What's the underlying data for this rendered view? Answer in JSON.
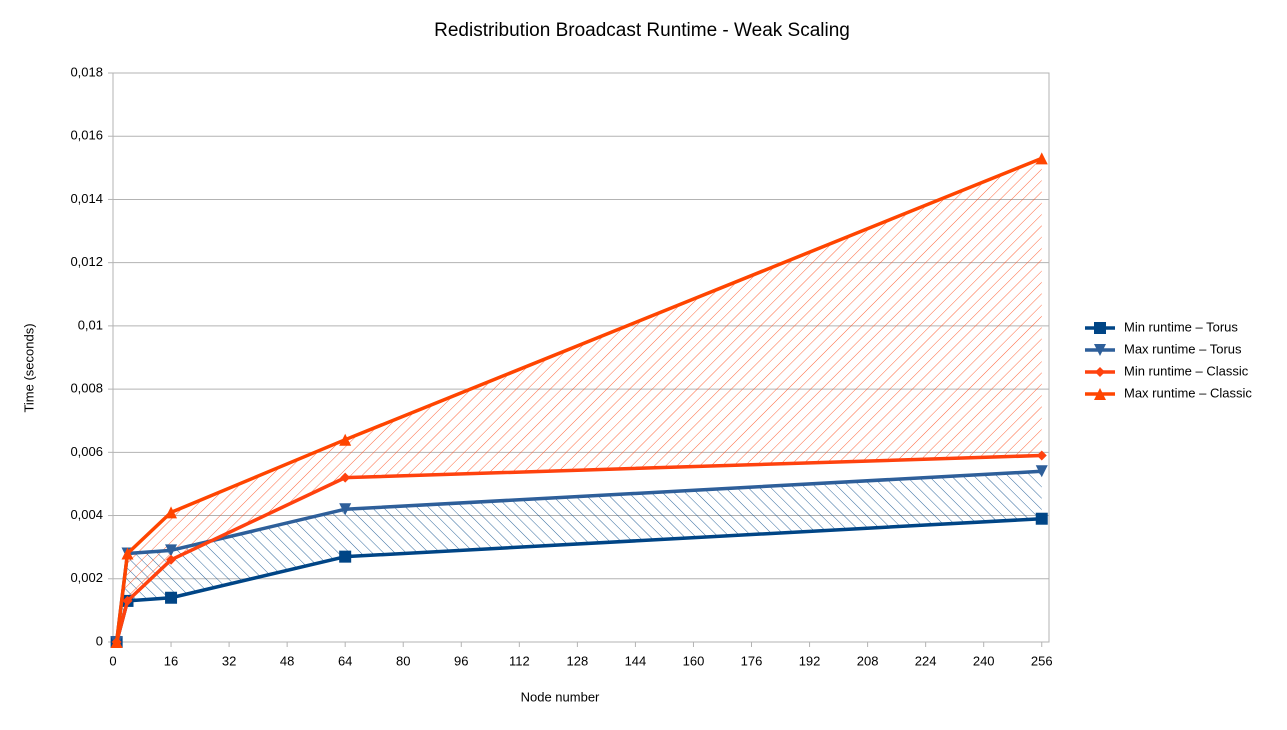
{
  "chart_data": {
    "type": "line",
    "title": "Redistribution Broadcast Runtime - Weak Scaling",
    "x_label": "Node number",
    "y_label": "Time (seconds)",
    "x": [
      1,
      4,
      16,
      64,
      256
    ],
    "xlim": [
      0,
      258
    ],
    "xticks": [
      0,
      16,
      32,
      48,
      64,
      80,
      96,
      112,
      128,
      144,
      160,
      176,
      192,
      208,
      224,
      240,
      256
    ],
    "ylim": [
      0,
      0.018
    ],
    "yticks": [
      0,
      {
        "value": 0.002,
        "label": "0,002"
      },
      {
        "value": 0.004,
        "label": "0,004"
      },
      {
        "value": 0.006,
        "label": "0,006"
      },
      {
        "value": 0.008,
        "label": "0,008"
      },
      {
        "value": 0.01,
        "label": "0,01"
      },
      {
        "value": 0.012,
        "label": "0,012"
      },
      {
        "value": 0.014,
        "label": "0,014"
      },
      {
        "value": 0.016,
        "label": "0,016"
      },
      {
        "value": 0.018,
        "label": "0,018"
      }
    ],
    "grid": true,
    "legend": "right",
    "range_shading": true,
    "series": [
      {
        "name": "Min runtime – Torus",
        "color": "#004586",
        "marker": "square",
        "values": [
          0,
          0.0013,
          0.0014,
          0.0027,
          0.0039
        ]
      },
      {
        "name": "Max runtime – Torus",
        "color": "#2e5f9a",
        "marker": "triangle-down",
        "values": [
          0,
          0.0028,
          0.0029,
          0.0042,
          0.0054
        ]
      },
      {
        "name": "Min runtime – Classic",
        "color": "#ff420e",
        "marker": "diamond",
        "values": [
          0,
          0.0013,
          0.0026,
          0.0052,
          0.0059
        ]
      },
      {
        "name": "Max runtime – Classic",
        "color": "#ff4500",
        "marker": "triangle-up",
        "values": [
          0,
          0.0028,
          0.0041,
          0.0064,
          0.0153
        ]
      }
    ]
  }
}
